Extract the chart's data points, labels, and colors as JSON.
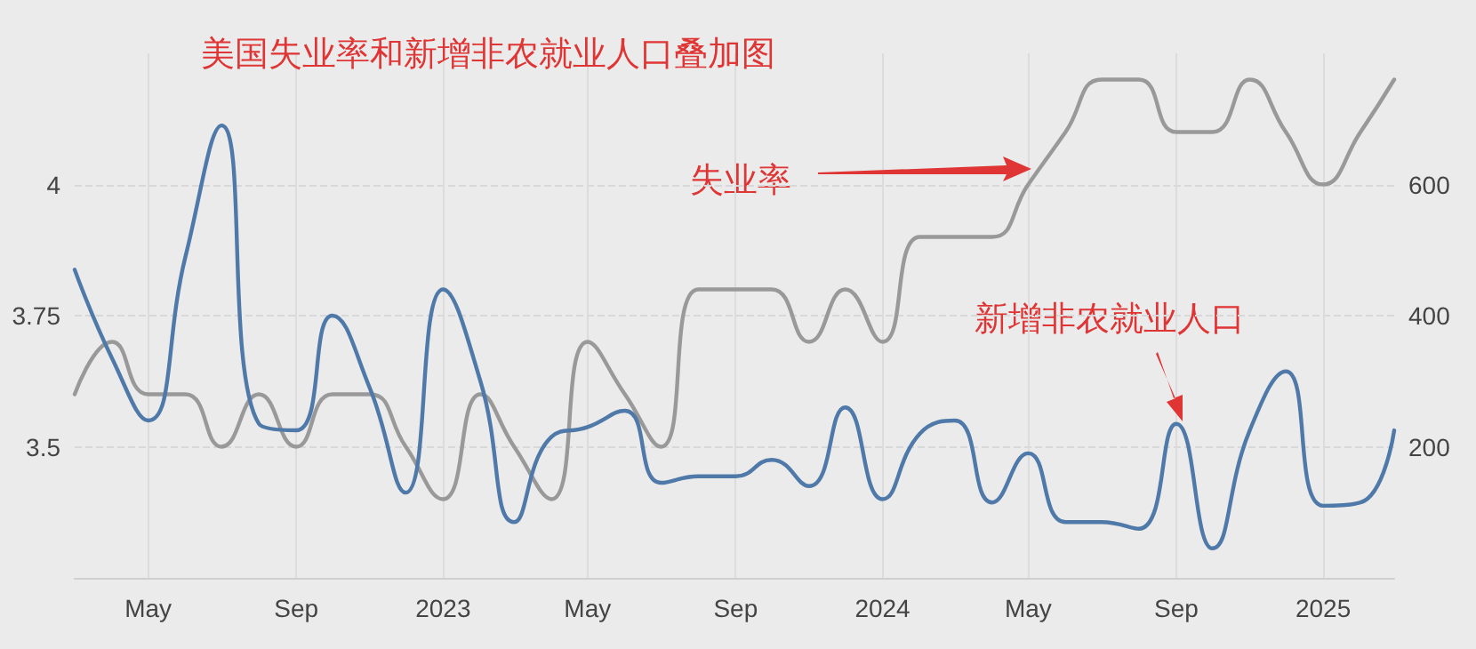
{
  "chart_data": {
    "type": "line",
    "title": "美国失业率和新增非农就业人口叠加图",
    "x": [
      "2022-03",
      "2022-04",
      "2022-05",
      "2022-06",
      "2022-07",
      "2022-08",
      "2022-09",
      "2022-10",
      "2022-11",
      "2022-12",
      "2023-01",
      "2023-02",
      "2023-03",
      "2023-04",
      "2023-05",
      "2023-06",
      "2023-07",
      "2023-08",
      "2023-09",
      "2023-10",
      "2023-11",
      "2023-12",
      "2024-01",
      "2024-02",
      "2024-03",
      "2024-04",
      "2024-05",
      "2024-06",
      "2024-07",
      "2024-08",
      "2024-09",
      "2024-10",
      "2024-11",
      "2024-12",
      "2025-01",
      "2025-02",
      "2025-03"
    ],
    "series": [
      {
        "color": "#999999",
        "values": [
          3.6,
          3.7,
          3.6,
          3.6,
          3.5,
          3.6,
          3.5,
          3.6,
          3.6,
          3.5,
          3.4,
          3.6,
          3.5,
          3.4,
          3.7,
          3.6,
          3.5,
          3.8,
          3.8,
          3.8,
          3.7,
          3.8,
          3.7,
          3.9,
          3.9,
          3.9,
          4.0,
          4.1,
          4.2,
          4.2,
          4.1,
          4.1,
          4.2,
          4.1,
          4.0,
          4.1,
          4.2
        ]
      },
      {
        "color": "#4f79a8",
        "axis": "y2",
        "values": [
          470,
          335,
          240,
          490,
          690,
          235,
          225,
          400,
          290,
          130,
          440,
          300,
          85,
          215,
          230,
          255,
          145,
          155,
          155,
          180,
          140,
          260,
          120,
          220,
          240,
          115,
          190,
          85,
          85,
          75,
          235,
          45,
          225,
          315,
          110,
          115,
          225
        ]
      }
    ],
    "xlim": [
      "2022-03",
      "2025-03"
    ],
    "xticks": [
      {
        "value": "2022-05",
        "label": "May"
      },
      {
        "value": "2022-09",
        "label": "Sep"
      },
      {
        "value": "2023-01",
        "label": "2023"
      },
      {
        "value": "2023-05",
        "label": "May"
      },
      {
        "value": "2023-09",
        "label": "Sep"
      },
      {
        "value": "2024-01",
        "label": "2024"
      },
      {
        "value": "2024-05",
        "label": "May"
      },
      {
        "value": "2024-09",
        "label": "Sep"
      },
      {
        "value": "2025-01",
        "label": "2025"
      }
    ],
    "ylim": [
      3.25,
      4.25
    ],
    "yticks": [
      3.5,
      3.75,
      4
    ],
    "y2lim": [
      0,
      800
    ],
    "y2ticks": [
      200,
      400,
      600
    ],
    "annotations": [
      "失业率",
      "新增非农就业人口"
    ],
    "grid": true,
    "marker": "none",
    "line_style": "solid"
  }
}
